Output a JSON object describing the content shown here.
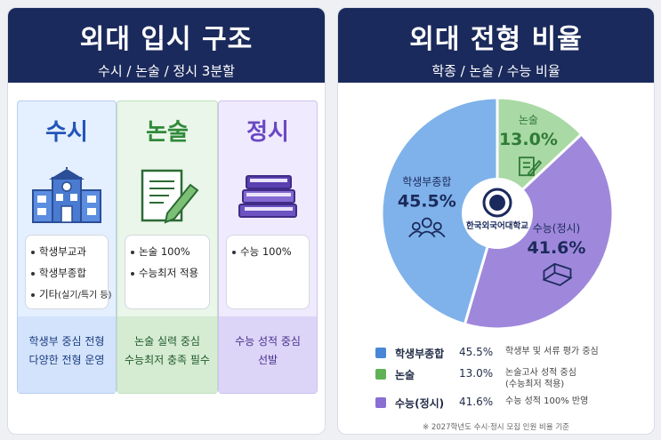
{
  "left": {
    "title": "외대 입시 구조",
    "subtitle": "수시 / 논술 / 정시 3분할",
    "columns": [
      {
        "title": "수시",
        "icon": "school-building-icon",
        "items": [
          "학생부교과",
          "학생부종합",
          "기타"
        ],
        "item_note": "(실기/특기 등)",
        "foot": [
          "학생부 중심 전형",
          "다양한 전형 운영"
        ]
      },
      {
        "title": "논술",
        "icon": "paper-pen-icon",
        "items": [
          "논술 100%",
          "수능최저 적용"
        ],
        "foot": [
          "논술 실력 중심",
          "수능최저 충족 필수"
        ]
      },
      {
        "title": "정시",
        "icon": "books-icon",
        "items": [
          "수능 100%"
        ],
        "foot": [
          "수능 성적 중심",
          "선발"
        ]
      }
    ]
  },
  "right": {
    "title": "외대 전형 비율",
    "subtitle": "학종 / 논술 / 수능 비율",
    "center_label": "한국외국어대학교",
    "note": "※ 2027학년도 수시·정시 모집 인원 비율 기준",
    "legend": [
      {
        "name": "학생부종합",
        "pct": "45.5%",
        "desc": [
          "학생부 및 서류 평가 중심"
        ]
      },
      {
        "name": "논술",
        "pct": "13.0%",
        "desc": [
          "논술고사 성적 중심",
          "(수능최저 적용)"
        ]
      },
      {
        "name": "수능(정시)",
        "pct": "41.6%",
        "desc": [
          "수능 성적 100% 반영"
        ]
      }
    ]
  },
  "chart_data": {
    "type": "pie",
    "title": "외대 전형 비율",
    "subtitle": "학종 / 논술 / 수능 비율",
    "slices": [
      {
        "label": "학생부종합",
        "value": 45.5,
        "display": "45.5%",
        "color": "#7fb2ea",
        "label_color": "#1b2a5c",
        "icon": "people-icon"
      },
      {
        "label": "논술",
        "value": 13.0,
        "display": "13.0%",
        "color": "#a9d9a4",
        "label_color": "#2f7a36",
        "icon": "paper-pen-icon"
      },
      {
        "label": "수능(정시)",
        "value": 41.6,
        "display": "41.6%",
        "color": "#9f88db",
        "label_color": "#1b2a5c",
        "icon": "book-icon"
      }
    ],
    "start_angle_deg": 0,
    "direction": "clockwise",
    "legend_position": "bottom"
  },
  "colors": {
    "header_bg": "#1b2a5c",
    "susi": "#2355b8",
    "nonsul": "#2f8a3a",
    "jeongsi": "#6a48c4"
  }
}
